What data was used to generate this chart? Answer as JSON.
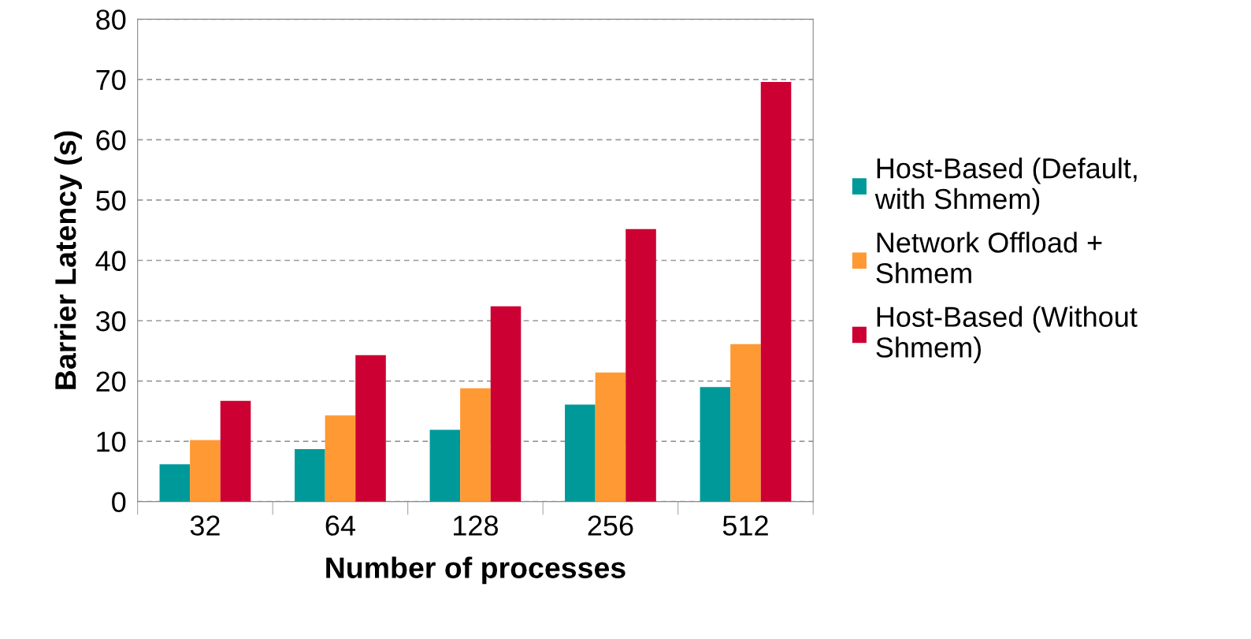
{
  "chart_data": {
    "type": "bar",
    "xlabel": "Number of processes",
    "ylabel": "Barrier Latency (s)",
    "categories": [
      "32",
      "64",
      "128",
      "256",
      "512"
    ],
    "series": [
      {
        "name": "Host-Based (Default,\nwith Shmem)",
        "color": "#009999",
        "values": [
          6.2,
          8.7,
          11.9,
          16.1,
          19.0
        ]
      },
      {
        "name": "Network Offload +\nShmem",
        "color": "#ff9933",
        "values": [
          10.2,
          14.3,
          18.8,
          21.4,
          26.1
        ]
      },
      {
        "name": "Host-Based (Without\nShmem)",
        "color": "#cc0033",
        "values": [
          16.7,
          24.3,
          32.4,
          45.2,
          69.6
        ]
      }
    ],
    "ylim": [
      0,
      80
    ],
    "yticks": [
      0,
      10,
      20,
      30,
      40,
      50,
      60,
      70,
      80
    ],
    "grid": "y",
    "legend": "right"
  }
}
